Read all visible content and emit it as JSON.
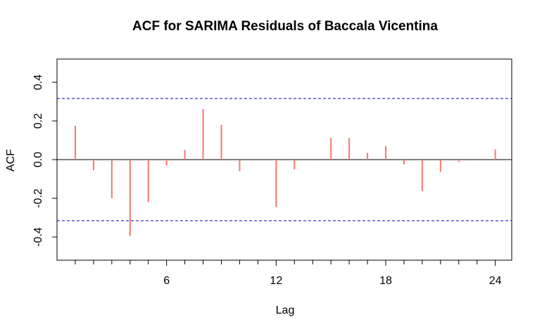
{
  "chart_data": {
    "type": "bar",
    "title": "ACF for SARIMA Residuals of Baccala Vicentina",
    "xlabel": "Lag",
    "ylabel": "ACF",
    "xlim": [
      0,
      24.9
    ],
    "ylim": [
      -0.52,
      0.52
    ],
    "x_ticks": [
      6,
      12,
      18,
      24
    ],
    "y_ticks": [
      -0.4,
      -0.2,
      0.0,
      0.2,
      0.4
    ],
    "y_tick_labels": [
      "-0.4",
      "-0.2",
      "0.0",
      "0.2",
      "0.4"
    ],
    "confidence_bound": 0.316,
    "colors": {
      "bars": "#f8766d",
      "bounds": "#0000cd",
      "zero_line": "#000000"
    },
    "lags": [
      1,
      2,
      3,
      4,
      5,
      6,
      7,
      8,
      9,
      10,
      11,
      12,
      13,
      14,
      15,
      16,
      17,
      18,
      19,
      20,
      21,
      22,
      23,
      24
    ],
    "values": [
      0.175,
      -0.055,
      -0.2,
      -0.395,
      -0.22,
      -0.03,
      0.05,
      0.262,
      0.18,
      -0.06,
      0.0,
      -0.245,
      -0.05,
      -0.005,
      0.112,
      0.112,
      0.035,
      0.07,
      -0.025,
      -0.163,
      -0.063,
      -0.012,
      -0.004,
      0.052
    ]
  }
}
